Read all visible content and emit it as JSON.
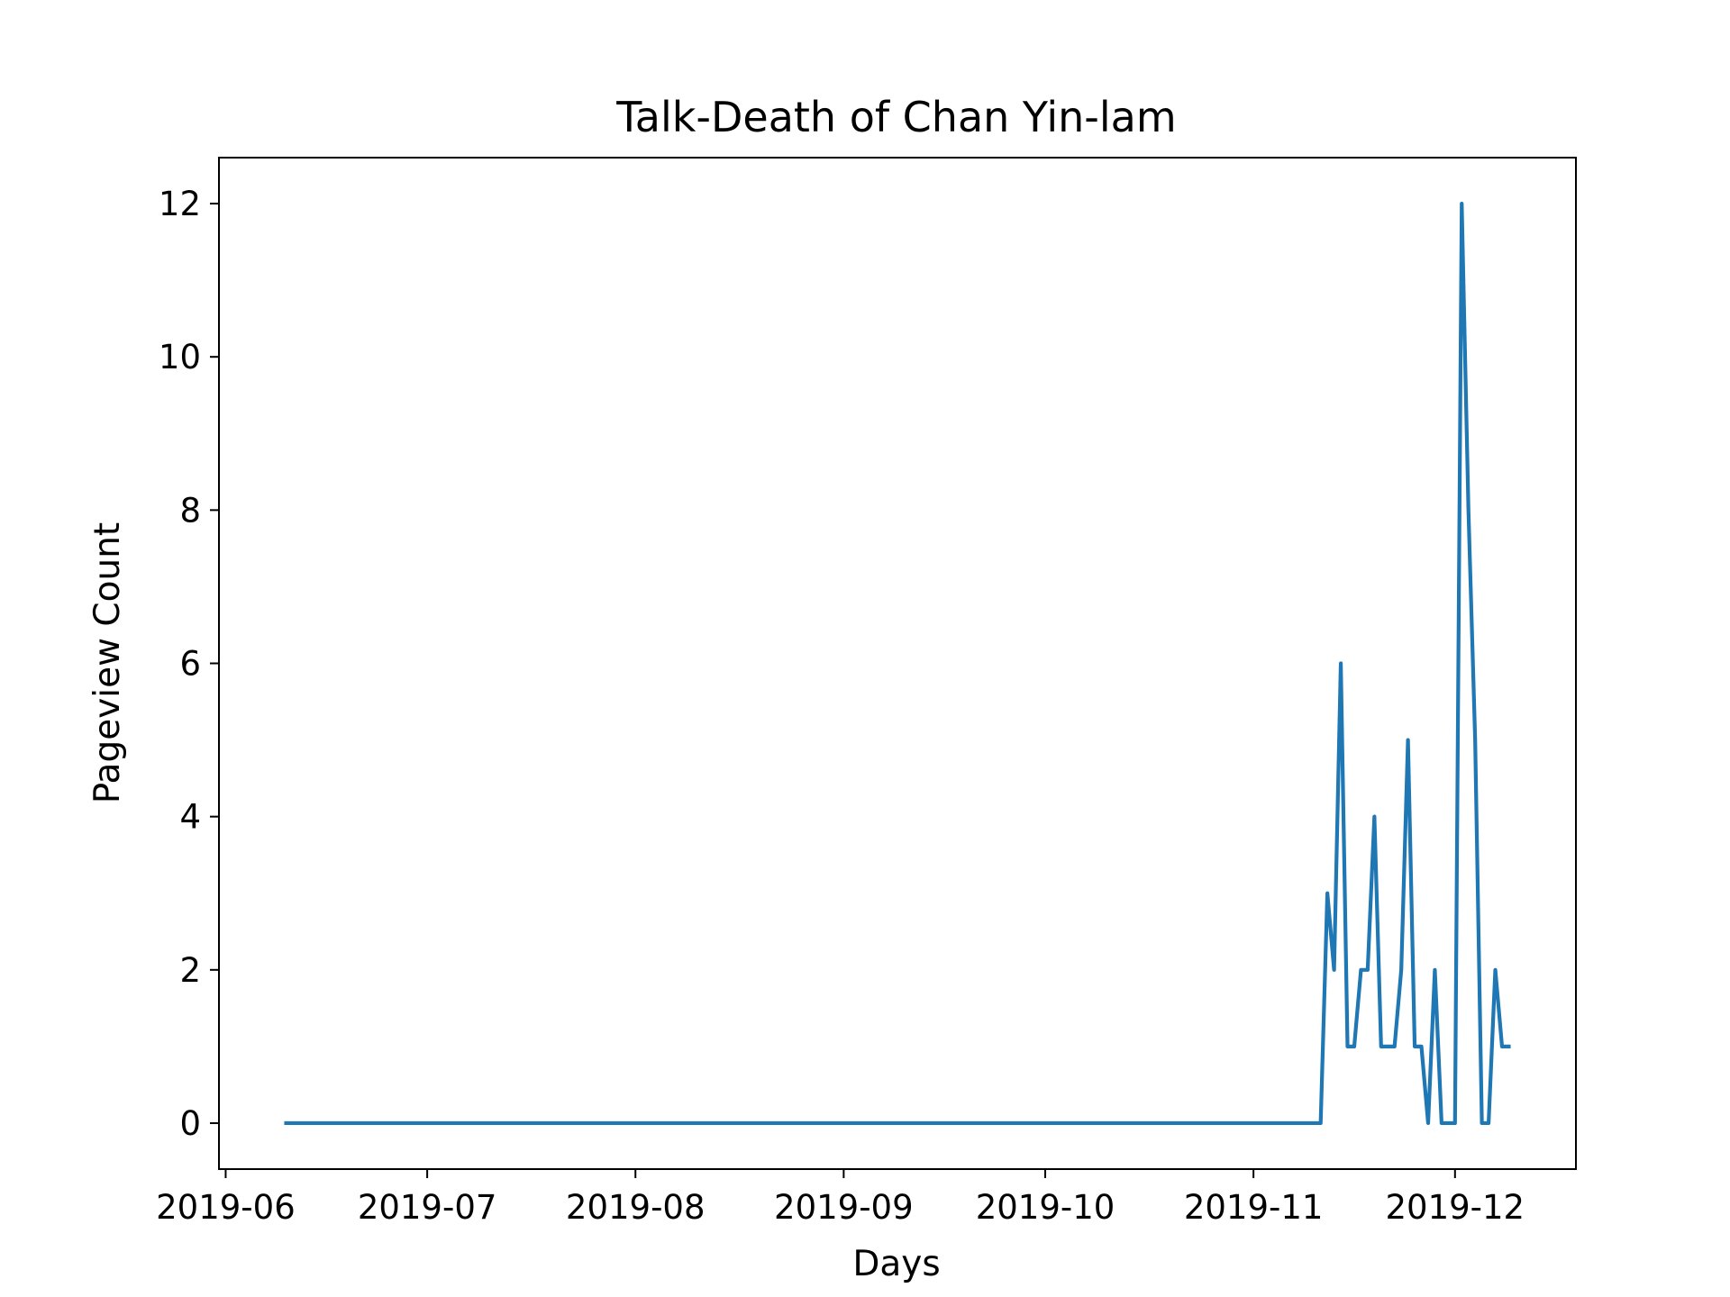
{
  "chart_data": {
    "type": "line",
    "title": "Talk-Death of Chan Yin-lam",
    "xlabel": "Days",
    "ylabel": "Pageview Count",
    "x_tick_labels": [
      "2019-06",
      "2019-07",
      "2019-08",
      "2019-09",
      "2019-10",
      "2019-11",
      "2019-12"
    ],
    "y_tick_labels": [
      "0",
      "2",
      "4",
      "6",
      "8",
      "10",
      "12"
    ],
    "x_ticks": [
      "2019-06-01",
      "2019-07-01",
      "2019-08-01",
      "2019-09-01",
      "2019-10-01",
      "2019-11-01",
      "2019-12-01"
    ],
    "y_ticks": [
      0,
      2,
      4,
      6,
      8,
      10,
      12
    ],
    "xlim": [
      "2019-05-31",
      "2019-12-19"
    ],
    "ylim": [
      -0.6,
      12.6
    ],
    "grid": false,
    "line_color": "#1f77b4",
    "series": [
      {
        "start_date": "2019-06-10",
        "values": [
          0,
          0,
          0,
          0,
          0,
          0,
          0,
          0,
          0,
          0,
          0,
          0,
          0,
          0,
          0,
          0,
          0,
          0,
          0,
          0,
          0,
          0,
          0,
          0,
          0,
          0,
          0,
          0,
          0,
          0,
          0,
          0,
          0,
          0,
          0,
          0,
          0,
          0,
          0,
          0,
          0,
          0,
          0,
          0,
          0,
          0,
          0,
          0,
          0,
          0,
          0,
          0,
          0,
          0,
          0,
          0,
          0,
          0,
          0,
          0,
          0,
          0,
          0,
          0,
          0,
          0,
          0,
          0,
          0,
          0,
          0,
          0,
          0,
          0,
          0,
          0,
          0,
          0,
          0,
          0,
          0,
          0,
          0,
          0,
          0,
          0,
          0,
          0,
          0,
          0,
          0,
          0,
          0,
          0,
          0,
          0,
          0,
          0,
          0,
          0,
          0,
          0,
          0,
          0,
          0,
          0,
          0,
          0,
          0,
          0,
          0,
          0,
          0,
          0,
          0,
          0,
          0,
          0,
          0,
          0,
          0,
          0,
          0,
          0,
          0,
          0,
          0,
          0,
          0,
          0,
          0,
          0,
          0,
          0,
          0,
          0,
          0,
          0,
          0,
          0,
          0,
          0,
          0,
          0,
          0,
          0,
          0,
          0,
          0,
          0,
          0,
          0,
          0,
          0,
          0,
          3,
          2,
          6,
          1,
          1,
          2,
          2,
          4,
          1,
          1,
          1,
          2,
          5,
          1,
          1,
          0,
          2,
          0,
          0,
          0,
          12,
          8,
          5,
          0,
          0,
          2,
          1,
          1
        ]
      }
    ]
  }
}
